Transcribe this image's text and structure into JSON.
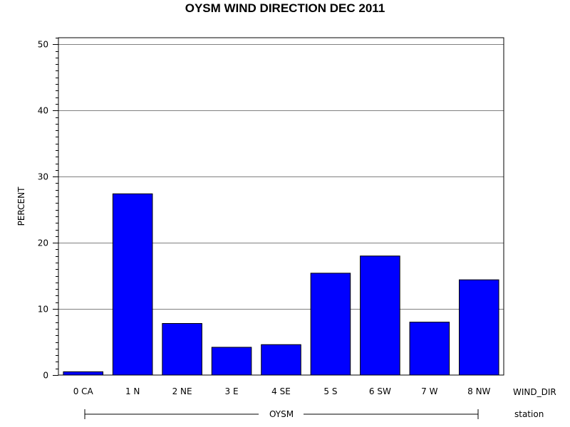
{
  "chart_data": {
    "type": "bar",
    "title": "OYSM WIND DIRECTION DEC 2011",
    "ylabel": "PERCENT",
    "xlabel": "WIND_DIR",
    "group_axis_label": "station",
    "group": "OYSM",
    "categories": [
      "0 CA",
      "1 N",
      "2 NE",
      "3 E",
      "4 SE",
      "5 S",
      "6 SW",
      "7 W",
      "8 NW"
    ],
    "values": [
      0.5,
      27.4,
      7.8,
      4.2,
      4.6,
      15.4,
      18.0,
      8.0,
      14.4
    ],
    "ylim": [
      0,
      51
    ],
    "yticks": [
      0,
      10,
      20,
      30,
      40,
      50
    ],
    "grid": true,
    "colors": {
      "bar": "#0000ff",
      "grid": "#808080"
    }
  }
}
